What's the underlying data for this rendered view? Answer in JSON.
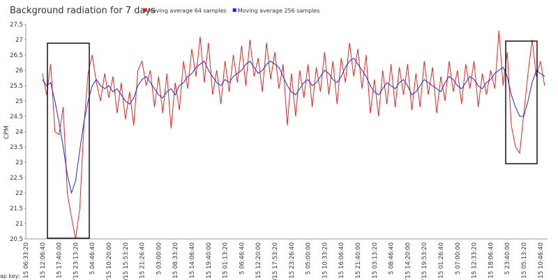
{
  "chart_data": {
    "type": "line",
    "title": "Background radiation for 7 days",
    "ylabel": "CPM",
    "footer": "ap key:",
    "categories": [
      "15 06:33:20",
      null,
      null,
      null,
      "15 12:06:40",
      null,
      null,
      null,
      "15 17:40:00",
      null,
      null,
      null,
      "'15 23:13:20",
      null,
      null,
      null,
      "5 04:46:40",
      null,
      null,
      null,
      "'15 10:20:00",
      null,
      null,
      null,
      "/15 15:53:20",
      null,
      null,
      null,
      "15 21:26:40",
      null,
      null,
      null,
      "5 03:00:00",
      null,
      null,
      null,
      "15 08:33:20",
      null,
      null,
      null,
      "15 14:06:40",
      null,
      null,
      null,
      "15 19:40:00",
      null,
      null,
      null,
      "15 01:13:20",
      null,
      null,
      null,
      "5 06:46:40",
      null,
      null,
      null,
      "15 12:20:00",
      null,
      null,
      null,
      "/15 17:53:20",
      null,
      null,
      null,
      "15 23:26:40",
      null,
      null,
      null,
      "5 05:00:00",
      null,
      null,
      null,
      "15 10:33:20",
      null,
      null,
      null,
      "15 16:06:40",
      null,
      null,
      null,
      "15 21:40:00",
      null,
      null,
      null,
      "15 03:13:20",
      null,
      null,
      null,
      "5 08:46:40",
      null,
      null,
      null,
      "'15 14:20:00",
      null,
      null,
      null,
      "'15 19:53:20",
      null,
      null,
      null,
      "15 01:26:40",
      null,
      null,
      null,
      "5 07:00:00",
      null,
      null,
      null,
      "15 12:33:20",
      null,
      null,
      null,
      "15 18:06:40",
      null,
      null,
      null,
      "5 23:40:00",
      null,
      null,
      null,
      "15 05:13:20",
      null,
      null,
      null,
      "15 10:46:40",
      null
    ],
    "series": [
      {
        "name": "Moving average 64 samples",
        "color": "#e02424",
        "values": [
          null,
          null,
          null,
          null,
          25.9,
          25.2,
          26.2,
          24.0,
          23.9,
          24.8,
          22.0,
          21.2,
          20.5,
          21.5,
          24.2,
          25.9,
          26.5,
          25.6,
          25.0,
          25.9,
          25.1,
          25.8,
          24.6,
          25.6,
          24.4,
          25.3,
          24.2,
          26.0,
          26.3,
          25.5,
          26.0,
          24.8,
          25.8,
          24.6,
          25.9,
          24.1,
          25.6,
          24.7,
          26.3,
          25.4,
          26.7,
          25.8,
          27.1,
          25.6,
          26.9,
          25.2,
          26.0,
          24.9,
          26.3,
          25.3,
          26.5,
          25.6,
          26.8,
          25.5,
          27.0,
          25.8,
          26.4,
          25.3,
          26.9,
          25.7,
          26.6,
          25.4,
          26.2,
          24.2,
          25.9,
          24.5,
          26.0,
          25.1,
          26.2,
          24.8,
          26.1,
          25.3,
          26.6,
          25.2,
          26.3,
          24.9,
          26.4,
          25.6,
          26.9,
          25.8,
          26.7,
          25.4,
          26.5,
          24.6,
          25.7,
          24.5,
          26.0,
          24.9,
          26.2,
          24.8,
          26.1,
          25.2,
          26.2,
          24.7,
          25.9,
          24.8,
          26.3,
          25.2,
          26.1,
          24.6,
          25.8,
          25.0,
          26.3,
          25.3,
          26.0,
          24.9,
          26.2,
          25.4,
          26.3,
          24.8,
          25.9,
          25.2,
          26.0,
          25.4,
          27.3,
          25.5,
          26.6,
          24.2,
          23.5,
          23.3,
          24.6,
          25.9,
          27.0,
          25.8,
          26.3,
          25.5
        ]
      },
      {
        "name": "Moving average 256 samples",
        "color": "#2424d0",
        "values": [
          null,
          null,
          null,
          null,
          25.7,
          25.5,
          25.6,
          25.0,
          24.3,
          23.5,
          22.6,
          22.0,
          22.4,
          23.4,
          24.3,
          25.0,
          25.5,
          25.7,
          25.5,
          25.4,
          25.5,
          25.3,
          25.4,
          25.2,
          25.0,
          24.9,
          25.1,
          25.5,
          25.7,
          25.8,
          25.6,
          25.4,
          25.2,
          25.1,
          25.3,
          25.4,
          25.2,
          25.5,
          25.6,
          25.8,
          25.9,
          26.1,
          26.2,
          26.3,
          26.0,
          25.8,
          25.6,
          25.5,
          25.7,
          25.6,
          25.8,
          25.9,
          26.0,
          26.2,
          26.3,
          26.1,
          25.9,
          26.0,
          26.2,
          26.3,
          26.2,
          26.1,
          25.8,
          25.5,
          25.3,
          25.2,
          25.4,
          25.6,
          25.7,
          25.5,
          25.6,
          25.8,
          26.0,
          25.9,
          25.7,
          25.6,
          25.8,
          26.1,
          26.3,
          26.4,
          26.2,
          26.0,
          25.8,
          25.5,
          25.3,
          25.2,
          25.4,
          25.6,
          25.5,
          25.4,
          25.6,
          25.7,
          25.5,
          25.2,
          25.3,
          25.5,
          25.7,
          25.6,
          25.5,
          25.4,
          25.3,
          25.6,
          25.8,
          25.7,
          25.5,
          25.4,
          25.6,
          25.8,
          25.7,
          25.5,
          25.4,
          25.6,
          25.7,
          25.9,
          26.0,
          26.1,
          25.8,
          25.2,
          24.8,
          24.5,
          24.5,
          25.0,
          25.6,
          26.0,
          25.9,
          25.8
        ]
      }
    ],
    "ylim": [
      20.5,
      27.5
    ],
    "yticks": [
      20.5,
      21,
      21.5,
      22,
      22.5,
      23,
      23.5,
      24,
      24.5,
      25,
      25.5,
      26,
      26.5,
      27,
      27.5
    ],
    "grid": false
  }
}
